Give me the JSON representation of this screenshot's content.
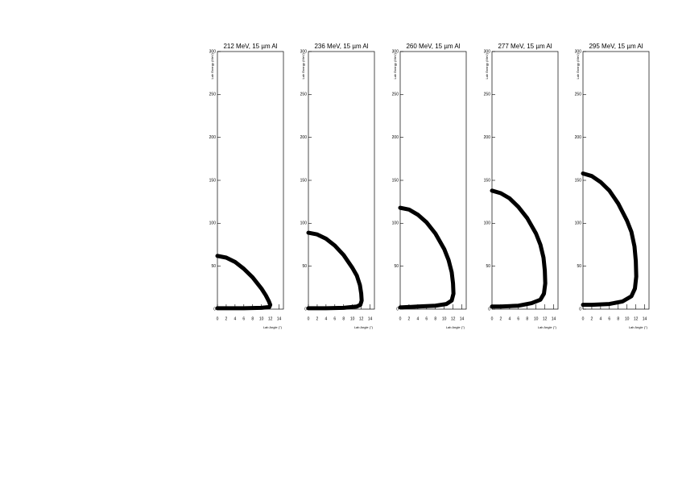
{
  "chart_data": [
    {
      "type": "line",
      "title": "212 MeV, 15 µm Al",
      "x_label": "Lab Angle (°)",
      "y_label": "Lab Energy (MeV)",
      "x": [
        0,
        2,
        4,
        6,
        8,
        10,
        11,
        11.7,
        12,
        11.8,
        10,
        6,
        2,
        0
      ],
      "values": [
        62,
        60,
        55,
        47,
        37,
        24,
        16,
        9,
        5,
        2.5,
        1.5,
        1,
        1,
        1
      ],
      "color": "#000000",
      "xlim": [
        0,
        15
      ],
      "xticks": [
        0,
        2,
        4,
        6,
        8,
        10,
        12,
        14
      ],
      "ylim": [
        0,
        300
      ],
      "yticks": [
        0,
        50,
        100,
        150,
        200,
        250,
        300
      ]
    },
    {
      "type": "line",
      "title": "236 MeV, 15 µm Al",
      "x_label": "Lab Angle (°)",
      "y_label": "Lab Energy (MeV)",
      "x": [
        0,
        2,
        4,
        6,
        8,
        10,
        11,
        11.7,
        12,
        12.1,
        11.8,
        11,
        8,
        4,
        0
      ],
      "values": [
        89,
        87,
        82,
        74,
        63,
        48,
        39,
        28,
        18,
        10,
        5,
        3,
        1.5,
        1,
        1
      ],
      "color": "#000000",
      "xlim": [
        0,
        15
      ],
      "xticks": [
        0,
        2,
        4,
        6,
        8,
        10,
        12,
        14
      ],
      "ylim": [
        0,
        300
      ],
      "yticks": [
        0,
        50,
        100,
        150,
        200,
        250,
        300
      ]
    },
    {
      "type": "line",
      "title": "260 MeV, 15 µm Al",
      "x_label": "Lab Angle (°)",
      "y_label": "Lab Energy (MeV)",
      "x": [
        0,
        2,
        4,
        6,
        8,
        10,
        11,
        11.7,
        12,
        12.1,
        11.7,
        10.5,
        8,
        4,
        0
      ],
      "values": [
        118,
        116,
        110,
        101,
        88,
        70,
        57,
        43,
        30,
        18,
        10,
        6,
        4,
        3,
        2
      ],
      "color": "#000000",
      "xlim": [
        0,
        15
      ],
      "xticks": [
        0,
        2,
        4,
        6,
        8,
        10,
        12,
        14
      ],
      "ylim": [
        0,
        300
      ],
      "yticks": [
        0,
        50,
        100,
        150,
        200,
        250,
        300
      ]
    },
    {
      "type": "line",
      "title": "277 MeV, 15 µm Al",
      "x_label": "Lab Angle (°)",
      "y_label": "Lab Energy (MeV)",
      "x": [
        0,
        2,
        4,
        6,
        8,
        10,
        11,
        11.7,
        12,
        12.1,
        11.8,
        11,
        9,
        6,
        2,
        0
      ],
      "values": [
        138,
        135,
        129,
        119,
        106,
        88,
        75,
        60,
        45,
        30,
        18,
        11,
        7,
        4,
        3,
        3
      ],
      "color": "#000000",
      "xlim": [
        0,
        15
      ],
      "xticks": [
        0,
        2,
        4,
        6,
        8,
        10,
        12,
        14
      ],
      "ylim": [
        0,
        300
      ],
      "yticks": [
        0,
        50,
        100,
        150,
        200,
        250,
        300
      ]
    },
    {
      "type": "line",
      "title": "295 MeV, 15 µm Al",
      "x_label": "Lab Angle (°)",
      "y_label": "Lab Energy (MeV)",
      "x": [
        0,
        2,
        4,
        6,
        8,
        10,
        11,
        11.7,
        12,
        12.1,
        11.8,
        11,
        9,
        6,
        2,
        0
      ],
      "values": [
        158,
        155,
        148,
        138,
        123,
        103,
        90,
        73,
        56,
        38,
        24,
        15,
        9,
        6,
        5,
        5
      ],
      "color": "#000000",
      "xlim": [
        0,
        15
      ],
      "xticks": [
        0,
        2,
        4,
        6,
        8,
        10,
        12,
        14
      ],
      "ylim": [
        0,
        300
      ],
      "yticks": [
        0,
        50,
        100,
        150,
        200,
        250,
        300
      ]
    }
  ]
}
